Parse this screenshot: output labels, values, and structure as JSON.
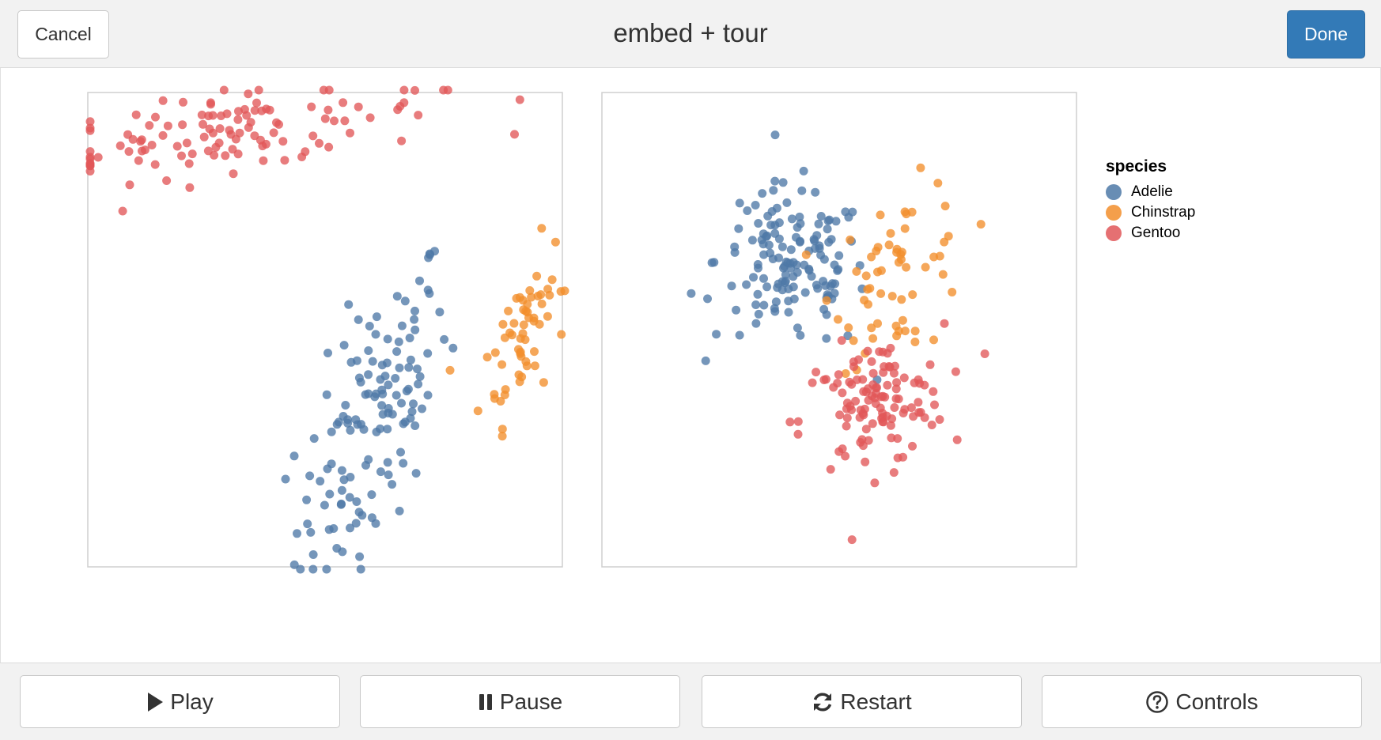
{
  "header": {
    "cancel_label": "Cancel",
    "title": "embed + tour",
    "done_label": "Done"
  },
  "legend": {
    "title": "species",
    "items": [
      {
        "label": "Adelie",
        "color": "#4e79a7"
      },
      {
        "label": "Chinstrap",
        "color": "#f28e2b"
      },
      {
        "label": "Gentoo",
        "color": "#e15759"
      }
    ]
  },
  "controls": [
    {
      "label": "Play",
      "icon": "play-icon"
    },
    {
      "label": "Pause",
      "icon": "pause-icon"
    },
    {
      "label": "Restart",
      "icon": "refresh-icon"
    },
    {
      "label": "Controls",
      "icon": "help-circle-icon"
    }
  ],
  "chart_data": [
    {
      "type": "scatter",
      "title": "",
      "xlabel": "",
      "ylabel": "",
      "xlim": [
        0,
        100
      ],
      "ylim": [
        0,
        100
      ],
      "grid": false,
      "series": [
        {
          "name": "Adelie",
          "color": "#4e79a7",
          "cluster": {
            "cx": 60,
            "cy": 30,
            "sx": 8,
            "sy": 17,
            "rho": 0.65,
            "n": 135
          }
        },
        {
          "name": "Chinstrap",
          "color": "#f28e2b",
          "cluster": {
            "cx": 92,
            "cy": 50,
            "sx": 4.5,
            "sy": 9,
            "rho": 0.55,
            "n": 60
          }
        },
        {
          "name": "Gentoo",
          "color": "#e15759",
          "cluster": {
            "cx": 30,
            "cy": 92,
            "sx": 22,
            "sy": 5,
            "rho": 0.55,
            "n": 115
          }
        }
      ]
    },
    {
      "type": "scatter",
      "title": "",
      "xlabel": "",
      "ylabel": "",
      "xlim": [
        0,
        100
      ],
      "ylim": [
        0,
        100
      ],
      "grid": false,
      "series": [
        {
          "name": "Adelie",
          "color": "#4e79a7",
          "cluster": {
            "cx": 40,
            "cy": 63,
            "sx": 8,
            "sy": 8.5,
            "rho": -0.1,
            "n": 140
          }
        },
        {
          "name": "Chinstrap",
          "color": "#f28e2b",
          "cluster": {
            "cx": 63,
            "cy": 62,
            "sx": 7,
            "sy": 9,
            "rho": 0.2,
            "n": 60
          }
        },
        {
          "name": "Gentoo",
          "color": "#e15759",
          "cluster": {
            "cx": 57,
            "cy": 34,
            "sx": 7.5,
            "sy": 7,
            "rho": 0.25,
            "n": 115
          }
        }
      ]
    }
  ]
}
